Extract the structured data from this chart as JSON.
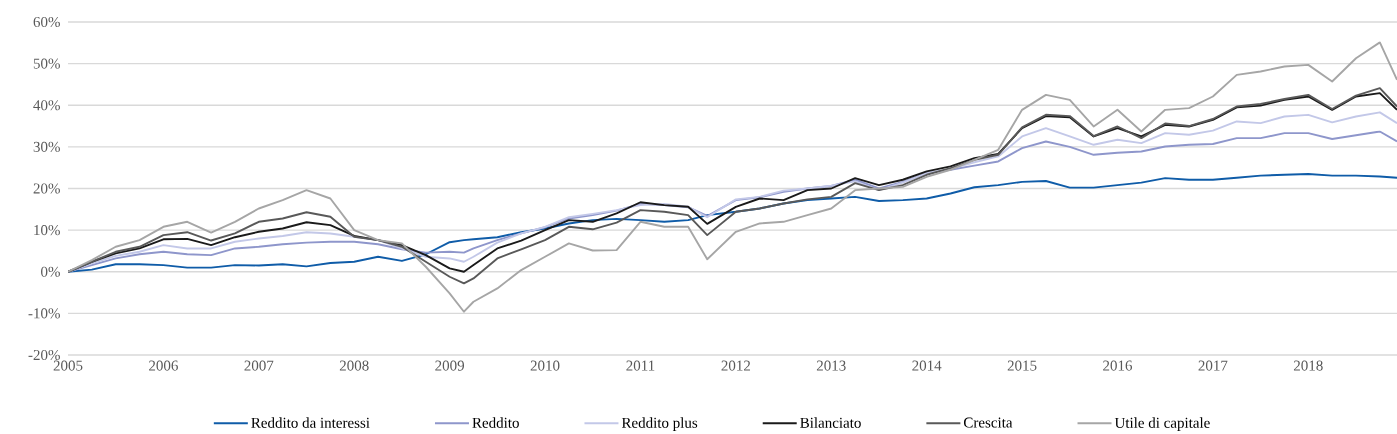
{
  "chart_data": {
    "type": "line",
    "grid": "y",
    "legend": "bottom",
    "line_style": "solid",
    "x": [
      2005,
      2005.25,
      2005.5,
      2005.75,
      2006,
      2006.25,
      2006.5,
      2006.75,
      2007,
      2007.25,
      2007.5,
      2007.75,
      2008,
      2008.25,
      2008.5,
      2008.75,
      2009,
      2009.15,
      2009.25,
      2009.5,
      2009.75,
      2010,
      2010.25,
      2010.5,
      2010.75,
      2011,
      2011.25,
      2011.5,
      2011.7,
      2012,
      2012.25,
      2012.5,
      2012.75,
      2013,
      2013.25,
      2013.5,
      2013.75,
      2014,
      2014.25,
      2014.5,
      2014.75,
      2015,
      2015.25,
      2015.5,
      2015.75,
      2016,
      2016.25,
      2016.5,
      2016.75,
      2017,
      2017.25,
      2017.5,
      2017.75,
      2018,
      2018.25,
      2018.5,
      2018.75,
      2018.93
    ],
    "xlim": [
      2005,
      2018.93
    ],
    "xticks": [
      2005,
      2006,
      2007,
      2008,
      2009,
      2010,
      2011,
      2012,
      2013,
      2014,
      2015,
      2016,
      2017,
      2018
    ],
    "ylim": [
      -20,
      60
    ],
    "yticks": [
      {
        "value": -20,
        "label": "-20%"
      },
      {
        "value": -10,
        "label": "-10%"
      },
      {
        "value": 0,
        "label": "0%"
      },
      {
        "value": 10,
        "label": "10%"
      },
      {
        "value": 20,
        "label": "20%"
      },
      {
        "value": 30,
        "label": "30%"
      },
      {
        "value": 40,
        "label": "40%"
      },
      {
        "value": 50,
        "label": "50%"
      },
      {
        "value": 60,
        "label": "60%"
      }
    ],
    "series": [
      {
        "name": "Reddito da interessi",
        "color": "#0f5ca8",
        "values": [
          0,
          0.5,
          1.8,
          1.8,
          1.6,
          1.0,
          1.0,
          1.6,
          1.5,
          1.8,
          1.3,
          2.1,
          2.4,
          3.6,
          2.6,
          4.2,
          7.1,
          7.6,
          7.8,
          8.3,
          9.5,
          10.4,
          11.6,
          12.4,
          12.7,
          12.4,
          12.0,
          12.4,
          13.6,
          14.4,
          15.2,
          16.4,
          17.2,
          17.6,
          18.0,
          17.0,
          17.2,
          17.6,
          18.8,
          20.3,
          20.8,
          21.6,
          21.8,
          20.2,
          20.2,
          20.8,
          21.4,
          22.5,
          22.1,
          22.1,
          22.6,
          23.1,
          23.3,
          23.5,
          23.1,
          23.1,
          22.9,
          22.6
        ]
      },
      {
        "name": "Reddito",
        "color": "#8e96cb",
        "values": [
          0,
          1.6,
          3.2,
          4.2,
          4.8,
          4.2,
          4.0,
          5.6,
          6.0,
          6.6,
          7.0,
          7.2,
          7.2,
          6.6,
          5.4,
          4.6,
          4.8,
          4.6,
          5.6,
          7.6,
          9.2,
          10.7,
          12.8,
          13.6,
          14.7,
          16.3,
          16.0,
          15.5,
          13.4,
          17.2,
          17.9,
          19.2,
          20.0,
          20.6,
          22.1,
          20.0,
          21.6,
          23.7,
          24.5,
          25.5,
          26.5,
          29.7,
          31.3,
          30.0,
          28.1,
          28.6,
          28.9,
          30.1,
          30.5,
          30.7,
          32.1,
          32.1,
          33.3,
          33.3,
          31.9,
          32.8,
          33.7,
          31.3
        ]
      },
      {
        "name": "Reddito plus",
        "color": "#c3c8e8",
        "values": [
          0,
          2.0,
          3.8,
          4.8,
          6.4,
          5.6,
          5.6,
          7.2,
          8.0,
          8.6,
          9.5,
          9.2,
          8.4,
          7.6,
          5.6,
          3.6,
          3.2,
          2.4,
          3.6,
          7.0,
          9.2,
          10.8,
          13.1,
          13.9,
          14.8,
          16.0,
          16.3,
          15.6,
          13.1,
          17.4,
          18.0,
          19.5,
          20.0,
          20.7,
          21.7,
          19.6,
          21.4,
          23.7,
          24.7,
          26.3,
          27.7,
          32.5,
          34.5,
          32.5,
          30.5,
          31.7,
          30.9,
          33.3,
          32.9,
          33.9,
          36.1,
          35.7,
          37.3,
          37.7,
          35.9,
          37.3,
          38.3,
          35.7
        ]
      },
      {
        "name": "Bilanciato",
        "color": "#1a1a1a",
        "values": [
          0,
          2.4,
          4.4,
          5.6,
          7.8,
          7.9,
          6.4,
          8.3,
          9.6,
          10.4,
          11.9,
          11.2,
          8.6,
          7.6,
          6.4,
          4.0,
          0.8,
          0.0,
          1.6,
          5.6,
          7.5,
          10.0,
          12.4,
          12.0,
          14.0,
          16.7,
          16.0,
          15.6,
          11.5,
          15.6,
          17.6,
          17.2,
          19.6,
          20.0,
          22.5,
          20.8,
          22.1,
          24.1,
          25.3,
          27.3,
          28.3,
          34.5,
          37.4,
          37.1,
          32.5,
          34.5,
          32.5,
          35.3,
          34.9,
          36.5,
          39.5,
          39.9,
          41.3,
          42.1,
          38.9,
          42.1,
          42.9,
          38.9
        ]
      },
      {
        "name": "Crescita",
        "color": "#595959",
        "values": [
          0,
          2.4,
          4.8,
          6.0,
          8.8,
          9.5,
          7.5,
          9.2,
          12.0,
          12.8,
          14.3,
          13.2,
          8.4,
          7.6,
          6.0,
          2.4,
          -1.2,
          -2.8,
          -1.6,
          3.2,
          5.4,
          7.6,
          10.8,
          10.2,
          11.8,
          14.8,
          14.4,
          13.6,
          8.8,
          14.4,
          15.2,
          16.4,
          17.4,
          18.0,
          21.3,
          19.6,
          20.8,
          23.3,
          24.9,
          26.9,
          28.1,
          34.7,
          37.7,
          37.4,
          32.6,
          34.9,
          32.1,
          35.6,
          35.0,
          36.7,
          39.7,
          40.3,
          41.5,
          42.5,
          39.1,
          42.3,
          44.1,
          39.7
        ]
      },
      {
        "name": "Utile di capitale",
        "color": "#a6a6a6",
        "values": [
          0,
          2.8,
          6.0,
          7.6,
          10.8,
          12.0,
          9.4,
          12.0,
          15.2,
          17.2,
          19.6,
          17.6,
          10.0,
          7.6,
          6.8,
          1.2,
          -5.2,
          -9.6,
          -7.2,
          -4.0,
          0.4,
          3.6,
          6.8,
          5.1,
          5.2,
          12.0,
          10.8,
          10.8,
          3.0,
          9.6,
          11.6,
          12.0,
          13.6,
          15.2,
          19.6,
          20.0,
          20.4,
          22.8,
          24.5,
          26.9,
          29.3,
          38.9,
          42.5,
          41.3,
          34.9,
          38.9,
          33.7,
          38.9,
          39.3,
          42.1,
          47.3,
          48.1,
          49.3,
          49.7,
          45.7,
          51.3,
          55.1,
          46.1
        ]
      }
    ]
  }
}
